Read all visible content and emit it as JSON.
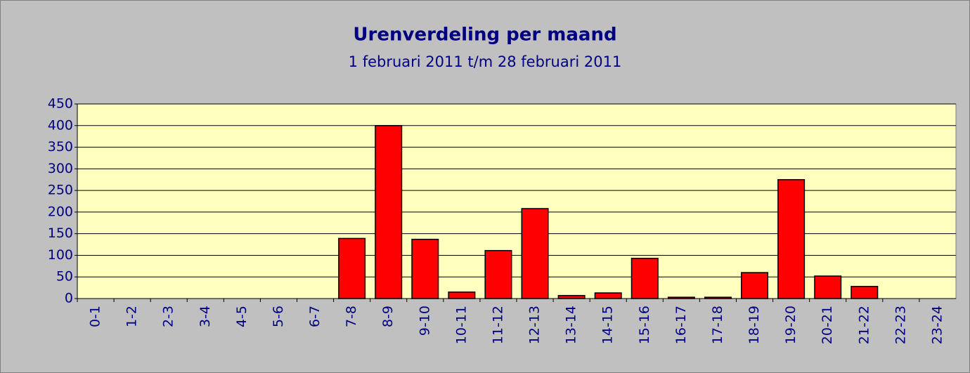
{
  "chart_data": {
    "type": "bar",
    "title": "Urenverdeling per maand",
    "subtitle": "1 februari 2011 t/m 28 februari 2011",
    "categories": [
      "0-1",
      "1-2",
      "2-3",
      "3-4",
      "4-5",
      "5-6",
      "6-7",
      "7-8",
      "8-9",
      "9-10",
      "10-11",
      "11-12",
      "12-13",
      "13-14",
      "14-15",
      "15-16",
      "16-17",
      "17-18",
      "18-19",
      "19-20",
      "20-21",
      "21-22",
      "22-23",
      "23-24"
    ],
    "values": [
      0,
      0,
      0,
      0,
      0,
      0,
      0,
      139,
      400,
      137,
      15,
      111,
      208,
      7,
      13,
      93,
      3,
      3,
      60,
      275,
      52,
      28,
      0,
      0
    ],
    "color": "#ff0000",
    "ylim": [
      0,
      450
    ],
    "yticks": [
      0,
      50,
      100,
      150,
      200,
      250,
      300,
      350,
      400,
      450
    ],
    "grid": true
  }
}
